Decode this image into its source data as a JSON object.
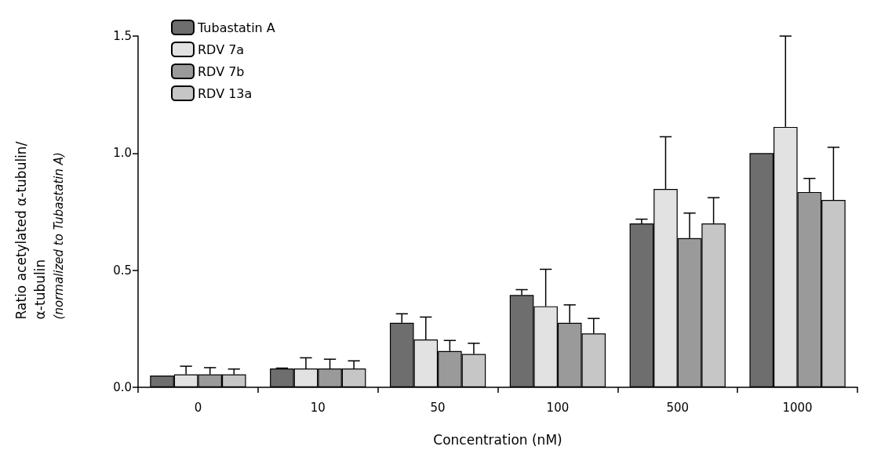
{
  "chart_data": {
    "type": "bar",
    "xlabel": "Concentration (nM)",
    "ylabel": "Ratio acetylated α-tubulin/\nα-tubulin\n(normalized to Tubastatin A)",
    "categories": [
      "0",
      "10",
      "50",
      "100",
      "500",
      "1000"
    ],
    "series": [
      {
        "name": "Tubastatin A",
        "color": "#6e6e6e",
        "values": [
          0.05,
          0.08,
          0.275,
          0.394,
          0.7,
          1.0
        ],
        "errors": [
          null,
          [
            0.08,
            0.082
          ],
          [
            0.275,
            0.314
          ],
          [
            0.394,
            0.417
          ],
          [
            0.7,
            0.718
          ],
          null
        ]
      },
      {
        "name": "RDV 7a",
        "color": "#e2e2e2",
        "values": [
          0.055,
          0.08,
          0.204,
          0.346,
          0.847,
          1.112
        ],
        "errors": [
          [
            0.055,
            0.09
          ],
          [
            0.08,
            0.126
          ],
          [
            0.204,
            0.3
          ],
          [
            0.346,
            0.504
          ],
          [
            0.847,
            1.07
          ],
          [
            1.112,
            1.5
          ]
        ]
      },
      {
        "name": "RDV 7b",
        "color": "#9a9a9a",
        "values": [
          0.055,
          0.08,
          0.155,
          0.275,
          0.637,
          0.834
        ],
        "errors": [
          [
            0.055,
            0.084
          ],
          [
            0.08,
            0.12
          ],
          [
            0.155,
            0.2
          ],
          [
            0.275,
            0.352
          ],
          [
            0.637,
            0.744
          ],
          [
            0.834,
            0.892
          ]
        ]
      },
      {
        "name": "RDV 13a",
        "color": "#c6c6c6",
        "values": [
          0.055,
          0.08,
          0.142,
          0.23,
          0.7,
          0.8
        ],
        "errors": [
          [
            0.055,
            0.078
          ],
          [
            0.08,
            0.113
          ],
          [
            0.142,
            0.188
          ],
          [
            0.23,
            0.294
          ],
          [
            0.7,
            0.81
          ],
          [
            0.8,
            1.025
          ]
        ]
      }
    ],
    "ylim": [
      0,
      1.5
    ],
    "yticks": [
      {
        "value": 0,
        "label": "0.0"
      },
      {
        "value": 0.5,
        "label": "0.5"
      },
      {
        "value": 1,
        "label": "1.0"
      },
      {
        "value": 1.5,
        "label": "1.5"
      }
    ],
    "grid": false,
    "legend": "top left"
  }
}
